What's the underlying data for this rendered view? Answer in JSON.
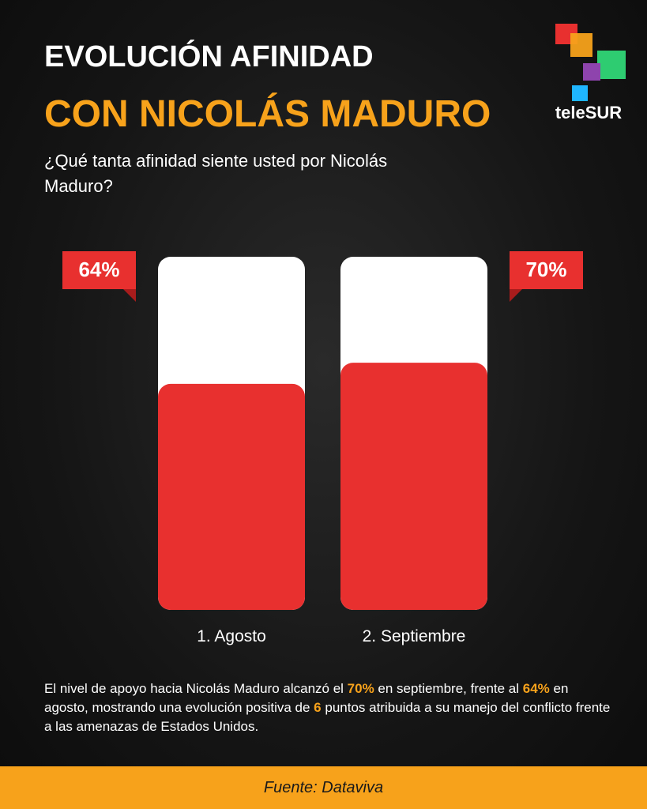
{
  "header": {
    "title_line1": "EVOLUCIÓN AFINIDAD",
    "title_line2": "CON NICOLÁS MADURO",
    "subtitle": "¿Qué tanta afinidad siente usted por Nicolás Maduro?",
    "logo": "teleSUR"
  },
  "chart_data": {
    "type": "bar",
    "categories": [
      "1. Agosto",
      "2. Septiembre"
    ],
    "values": [
      64,
      70
    ],
    "value_labels": [
      "64%",
      "70%"
    ],
    "color": "#e8302f",
    "ylim": [
      0,
      100
    ]
  },
  "note": [
    "El nivel de apoyo hacia Nicolás Maduro alcanzó el ",
    "70%",
    " en septiembre, frente al ",
    "64%",
    " en agosto, mostrando una evolución positiva de ",
    "6",
    " puntos atribuida a su manejo del conflicto frente a las amenazas de Estados Unidos."
  ],
  "footer": {
    "source": "Fuente: Dataviva"
  }
}
